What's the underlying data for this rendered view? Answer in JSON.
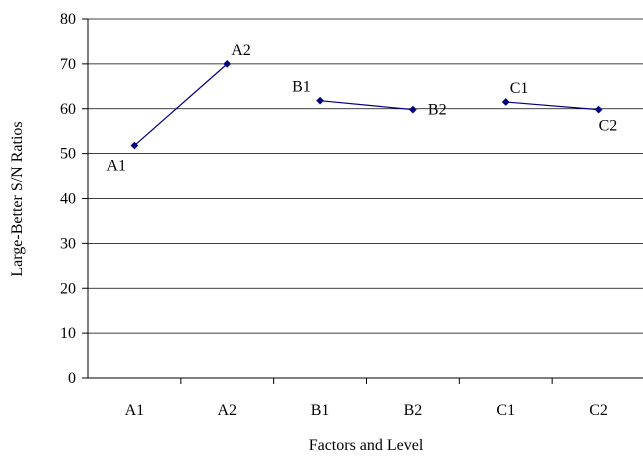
{
  "chart_data": {
    "type": "line",
    "title": "",
    "xlabel": "Factors and Level",
    "ylabel": "Large-Better S/N Ratios",
    "categories": [
      "A1",
      "A2",
      "B1",
      "B2",
      "C1",
      "C2"
    ],
    "ylim": [
      0,
      80
    ],
    "yticks": [
      0,
      10,
      20,
      30,
      40,
      50,
      60,
      70,
      80
    ],
    "grid": true,
    "legend": "none",
    "colors": {
      "line": "#000080",
      "marker": "#000080",
      "grid": "#000000"
    },
    "segments": [
      {
        "points": [
          {
            "x": "A1",
            "y": 51.8,
            "label": "A1",
            "label_pos": "below-left"
          },
          {
            "x": "A2",
            "y": 70.0,
            "label": "A2",
            "label_pos": "above-right"
          }
        ]
      },
      {
        "points": [
          {
            "x": "B1",
            "y": 61.8,
            "label": "B1",
            "label_pos": "above-left"
          },
          {
            "x": "B2",
            "y": 59.8,
            "label": "B2",
            "label_pos": "right"
          }
        ]
      },
      {
        "points": [
          {
            "x": "C1",
            "y": 61.5,
            "label": "C1",
            "label_pos": "above-right"
          },
          {
            "x": "C2",
            "y": 59.8,
            "label": "C2",
            "label_pos": "below-right"
          }
        ]
      }
    ]
  }
}
